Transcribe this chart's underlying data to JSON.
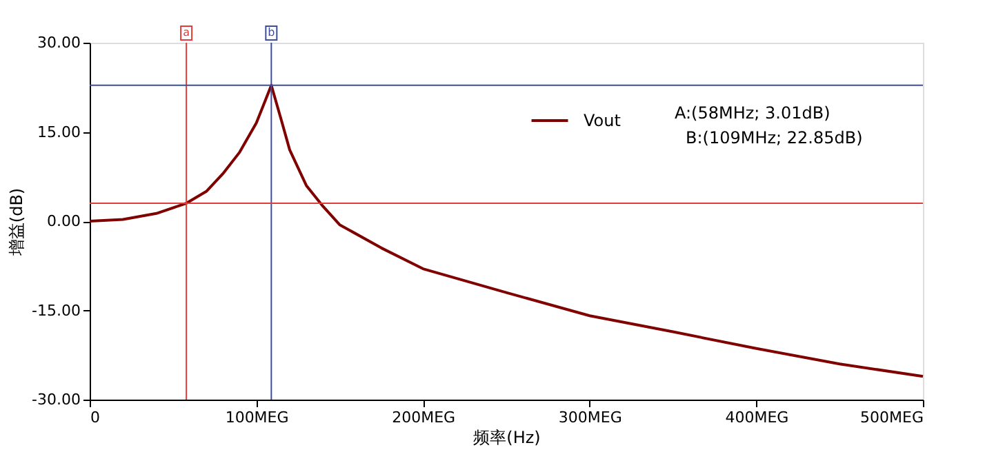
{
  "chart_data": {
    "type": "line",
    "xlabel": "频率(Hz)",
    "ylabel": "增益(dB)",
    "x": [
      0,
      20,
      40,
      58,
      70,
      80,
      90,
      100,
      105,
      109,
      115,
      120,
      130,
      140,
      150,
      175,
      200,
      250,
      300,
      350,
      400,
      450,
      500
    ],
    "series": [
      {
        "name": "Vout",
        "color": "#800000",
        "values": [
          0,
          0.3,
          1.3,
          3.01,
          5,
          8,
          11.6,
          16.5,
          20,
          22.85,
          17,
          12,
          6,
          2.5,
          -0.6,
          -4.5,
          -8,
          -12,
          -15.9,
          -18.6,
          -21.4,
          -24,
          -26.1
        ]
      }
    ],
    "xlim": [
      0,
      500
    ],
    "ylim": [
      -30,
      30
    ],
    "xticks": [
      0,
      {
        "value": 100,
        "label": "100MEG"
      },
      {
        "value": 200,
        "label": "200MEG"
      },
      {
        "value": 300,
        "label": "300MEG"
      },
      {
        "value": 400,
        "label": "400MEG"
      },
      {
        "value": 500,
        "label": "500MEG"
      }
    ],
    "yticks": [
      {
        "value": -30,
        "label": "-30.00"
      },
      {
        "value": -15,
        "label": "-15.00"
      },
      {
        "value": 0,
        "label": "0.00"
      },
      {
        "value": 15,
        "label": "15.00"
      },
      {
        "value": 30,
        "label": "30.00"
      }
    ],
    "ref_lines": [
      {
        "axis": "x",
        "value": 58,
        "label": "a",
        "color": "#e03c3c"
      },
      {
        "axis": "x",
        "value": 109,
        "label": "b",
        "color": "#3c4ca0"
      },
      {
        "axis": "y",
        "value": 3.01,
        "color": "#e03c3c"
      },
      {
        "axis": "y",
        "value": 22.85,
        "color": "#3c4ca0"
      }
    ],
    "annotations": [
      "A:(58MHz; 3.01dB)",
      "B:(109MHz; 22.85dB)"
    ],
    "legend": "top right",
    "grid": false,
    "marker": "none",
    "line_style": "solid"
  }
}
